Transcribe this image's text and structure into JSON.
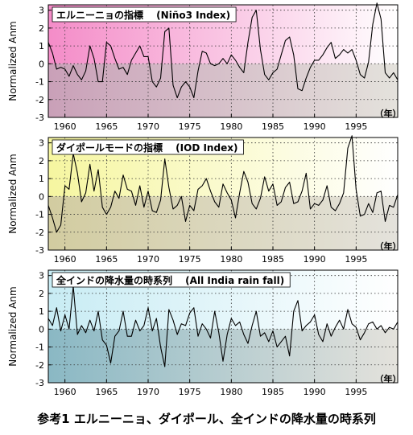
{
  "caption": "参考1 エルニーニョ、ダイポール、全インドの降水量の時系列",
  "year_unit": "（年）",
  "chart_data": [
    {
      "type": "line",
      "title": "エルニーニョの指標　 (Niño3 Index)",
      "ylabel": "Normalized Anm",
      "xlim": [
        1958,
        2000
      ],
      "ylim": [
        -3,
        3.3
      ],
      "xticks": [
        1960,
        1965,
        1970,
        1975,
        1980,
        1985,
        1990,
        1995
      ],
      "yticks": [
        -3,
        -2,
        -1,
        0,
        1,
        2,
        3
      ],
      "grid": true,
      "colors": {
        "top": "#f48cc8",
        "bottom": "#c9a0b8",
        "line": "#000000"
      },
      "x": [
        1958,
        1958.5,
        1959,
        1959.5,
        1960,
        1960.5,
        1961,
        1961.5,
        1962,
        1962.5,
        1963,
        1963.5,
        1964,
        1964.5,
        1965,
        1965.5,
        1966,
        1966.5,
        1967,
        1967.5,
        1968,
        1968.5,
        1969,
        1969.5,
        1970,
        1970.5,
        1971,
        1971.5,
        1972,
        1972.5,
        1973,
        1973.5,
        1974,
        1974.5,
        1975,
        1975.5,
        1976,
        1976.5,
        1977,
        1977.5,
        1978,
        1978.5,
        1979,
        1979.5,
        1980,
        1980.5,
        1981,
        1981.5,
        1982,
        1982.5,
        1983,
        1983.5,
        1984,
        1984.5,
        1985,
        1985.5,
        1986,
        1986.5,
        1987,
        1987.5,
        1988,
        1988.5,
        1989,
        1989.5,
        1990,
        1990.5,
        1991,
        1991.5,
        1992,
        1992.5,
        1993,
        1993.5,
        1994,
        1994.5,
        1995,
        1995.5,
        1996,
        1996.5,
        1997,
        1997.5,
        1998,
        1998.5,
        1999,
        1999.5,
        2000
      ],
      "values": [
        1.2,
        0.6,
        -0.3,
        -0.2,
        -0.3,
        -0.7,
        -0.1,
        -0.6,
        -0.9,
        -0.4,
        1.0,
        0.3,
        -1.0,
        -1.0,
        1.2,
        1.0,
        0.3,
        -0.3,
        -0.2,
        -0.6,
        0.2,
        0.6,
        1.0,
        0.4,
        0.4,
        -1.0,
        -1.3,
        -0.8,
        1.8,
        2.0,
        -1.2,
        -1.9,
        -1.3,
        -1.0,
        -1.3,
        -1.9,
        -0.4,
        0.7,
        0.6,
        0.0,
        -0.1,
        0.0,
        0.3,
        0.0,
        0.5,
        0.2,
        -0.2,
        -0.5,
        1.2,
        2.6,
        3.0,
        0.8,
        -0.6,
        -0.9,
        -0.5,
        -0.3,
        0.5,
        1.3,
        1.5,
        0.5,
        -1.4,
        -1.5,
        -0.8,
        -0.2,
        0.2,
        0.2,
        0.5,
        0.9,
        1.2,
        0.3,
        0.5,
        0.8,
        0.6,
        0.8,
        0.2,
        -0.6,
        -0.8,
        0.1,
        2.2,
        3.4,
        2.5,
        -0.5,
        -0.8,
        -0.5,
        -0.9
      ]
    },
    {
      "type": "line",
      "title": "ダイポールモードの指標　 (IOD Index)",
      "ylabel": "Normalized Anm",
      "xlim": [
        1958,
        2000
      ],
      "ylim": [
        -3,
        3.3
      ],
      "xticks": [
        1960,
        1965,
        1970,
        1975,
        1980,
        1985,
        1990,
        1995
      ],
      "yticks": [
        -3,
        -2,
        -1,
        0,
        1,
        2,
        3
      ],
      "grid": true,
      "colors": {
        "top": "#f6f6a0",
        "bottom": "#d2cca0",
        "line": "#000000"
      },
      "x": [
        1958,
        1958.5,
        1959,
        1959.5,
        1960,
        1960.5,
        1961,
        1961.5,
        1962,
        1962.5,
        1963,
        1963.5,
        1964,
        1964.5,
        1965,
        1965.5,
        1966,
        1966.5,
        1967,
        1967.5,
        1968,
        1968.5,
        1969,
        1969.5,
        1970,
        1970.5,
        1971,
        1971.5,
        1972,
        1972.5,
        1973,
        1973.5,
        1974,
        1974.5,
        1975,
        1975.5,
        1976,
        1976.5,
        1977,
        1977.5,
        1978,
        1978.5,
        1979,
        1979.5,
        1980,
        1980.5,
        1981,
        1981.5,
        1982,
        1982.5,
        1983,
        1983.5,
        1984,
        1984.5,
        1985,
        1985.5,
        1986,
        1986.5,
        1987,
        1987.5,
        1988,
        1988.5,
        1989,
        1989.5,
        1990,
        1990.5,
        1991,
        1991.5,
        1992,
        1992.5,
        1993,
        1993.5,
        1994,
        1994.5,
        1995,
        1995.5,
        1996,
        1996.5,
        1997,
        1997.5,
        1998,
        1998.5,
        1999,
        1999.5,
        2000
      ],
      "values": [
        -0.5,
        -1.2,
        -2.0,
        -1.6,
        0.6,
        0.4,
        2.4,
        1.3,
        -0.3,
        0.2,
        1.8,
        0.3,
        1.5,
        -0.6,
        -1.0,
        -0.6,
        0.3,
        -0.1,
        1.2,
        0.4,
        0.3,
        -0.5,
        0.6,
        -0.6,
        0.3,
        -0.8,
        -0.9,
        -0.2,
        2.1,
        0.5,
        -0.7,
        -0.5,
        0.0,
        -1.4,
        -0.5,
        -0.8,
        0.4,
        0.6,
        1.0,
        0.3,
        -0.3,
        -0.6,
        0.7,
        0.2,
        -0.2,
        -1.2,
        0.2,
        1.4,
        0.8,
        -0.4,
        -0.7,
        -0.1,
        1.1,
        0.3,
        0.7,
        -0.5,
        -0.3,
        0.5,
        0.8,
        -0.4,
        -0.3,
        0.3,
        1.3,
        -0.7,
        -0.4,
        -0.5,
        -0.2,
        0.6,
        -0.6,
        -0.8,
        -0.4,
        0.2,
        2.7,
        3.4,
        0.4,
        -1.1,
        -1.0,
        -0.4,
        -0.9,
        0.2,
        0.3,
        -1.4,
        -0.5,
        -0.6,
        0.1
      ]
    },
    {
      "type": "line",
      "title": "全インドの降水量の時系列　 (All India rain fall)",
      "ylabel": "Normalized Anm",
      "xlim": [
        1958,
        2000
      ],
      "ylim": [
        -3,
        3.3
      ],
      "xticks": [
        1960,
        1965,
        1970,
        1975,
        1980,
        1985,
        1990,
        1995
      ],
      "yticks": [
        -3,
        -2,
        -1,
        0,
        1,
        2,
        3
      ],
      "grid": true,
      "colors": {
        "top": "#c8ecf4",
        "bottom": "#8ab8c4",
        "line": "#000000"
      },
      "x": [
        1958,
        1958.5,
        1959,
        1959.5,
        1960,
        1960.5,
        1961,
        1961.5,
        1962,
        1962.5,
        1963,
        1963.5,
        1964,
        1964.5,
        1965,
        1965.5,
        1966,
        1966.5,
        1967,
        1967.5,
        1968,
        1968.5,
        1969,
        1969.5,
        1970,
        1970.5,
        1971,
        1971.5,
        1972,
        1972.5,
        1973,
        1973.5,
        1974,
        1974.5,
        1975,
        1975.5,
        1976,
        1976.5,
        1977,
        1977.5,
        1978,
        1978.5,
        1979,
        1979.5,
        1980,
        1980.5,
        1981,
        1981.5,
        1982,
        1982.5,
        1983,
        1983.5,
        1984,
        1984.5,
        1985,
        1985.5,
        1986,
        1986.5,
        1987,
        1987.5,
        1988,
        1988.5,
        1989,
        1989.5,
        1990,
        1990.5,
        1991,
        1991.5,
        1992,
        1992.5,
        1993,
        1993.5,
        1994,
        1994.5,
        1995,
        1995.5,
        1996,
        1996.5,
        1997,
        1997.5,
        1998,
        1998.5,
        1999,
        1999.5,
        2000
      ],
      "values": [
        0.6,
        0.2,
        1.2,
        -0.1,
        0.8,
        0.0,
        2.4,
        -0.3,
        0.2,
        -0.2,
        0.5,
        -0.1,
        1.0,
        -0.6,
        -0.9,
        -1.9,
        -0.4,
        -0.1,
        1.0,
        -0.4,
        -0.4,
        0.5,
        -0.1,
        0.2,
        1.2,
        -0.1,
        0.6,
        -1.0,
        -2.1,
        1.1,
        0.5,
        -0.3,
        0.3,
        0.2,
        0.9,
        1.2,
        -0.4,
        0.3,
        0.0,
        -0.5,
        1.0,
        -0.2,
        -1.8,
        -0.3,
        0.6,
        0.2,
        0.4,
        -0.3,
        -0.8,
        0.2,
        1.0,
        -0.4,
        -0.2,
        -0.7,
        -0.1,
        -1.0,
        -0.7,
        -0.4,
        -1.5,
        1.0,
        1.6,
        -0.1,
        0.2,
        0.4,
        0.8,
        -0.3,
        -0.7,
        0.3,
        -0.4,
        0.1,
        0.5,
        0.0,
        1.1,
        0.3,
        0.1,
        -0.6,
        -0.2,
        0.3,
        0.4,
        0.0,
        0.2,
        -0.2,
        0.1,
        0.0,
        0.4
      ]
    }
  ]
}
